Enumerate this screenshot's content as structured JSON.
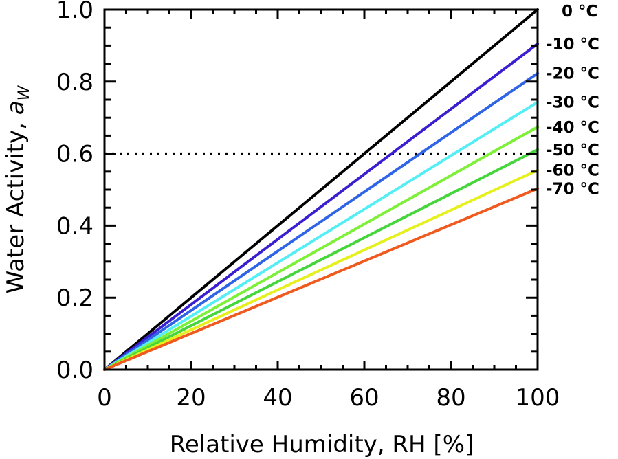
{
  "chart_data": {
    "type": "line",
    "title": "",
    "xlabel": "Relative Humidity, RH [%]",
    "ylabel": "Water Activity, ",
    "ylabel_symbol": "a",
    "ylabel_subscript": "W",
    "xlim": [
      0,
      100
    ],
    "ylim": [
      0,
      1.0
    ],
    "xticks": [
      0,
      20,
      40,
      60,
      80,
      100
    ],
    "xtick_labels": [
      "0",
      "20",
      "40",
      "60",
      "80",
      "100"
    ],
    "yticks": [
      0.0,
      0.2,
      0.4,
      0.6,
      0.8,
      1.0
    ],
    "ytick_labels": [
      "0.0",
      "0.2",
      "0.4",
      "0.6",
      "0.8",
      "1.0"
    ],
    "x": [
      0,
      100
    ],
    "series": [
      {
        "name": "0 °C",
        "label": "0 °C",
        "color": "#000000",
        "values": [
          0,
          1.0
        ]
      },
      {
        "name": "-10 °C",
        "label": "-10 °C",
        "color": "#3a1fd1",
        "values": [
          0,
          0.905
        ]
      },
      {
        "name": "-20 °C",
        "label": "-20 °C",
        "color": "#2f64e6",
        "values": [
          0,
          0.823
        ]
      },
      {
        "name": "-30 °C",
        "label": "-30 °C",
        "color": "#55eef5",
        "values": [
          0,
          0.743
        ]
      },
      {
        "name": "-40 °C",
        "label": "-40 °C",
        "color": "#7ff03a",
        "values": [
          0,
          0.674
        ]
      },
      {
        "name": "-50 °C",
        "label": "-50 °C",
        "color": "#45d63c",
        "values": [
          0,
          0.611
        ]
      },
      {
        "name": "-60 °C",
        "label": "-60 °C",
        "color": "#e6f01e",
        "values": [
          0,
          0.554
        ]
      },
      {
        "name": "-70 °C",
        "label": "-70 °C",
        "color": "#f05a1e",
        "values": [
          0,
          0.503
        ]
      }
    ],
    "reference_line": {
      "y": 0.6,
      "style": "dotted",
      "color": "#000000"
    },
    "grid": false,
    "legend": "labels at right end of each line"
  }
}
